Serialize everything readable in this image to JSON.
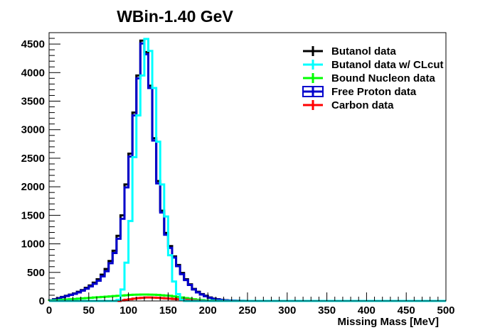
{
  "chart_data": {
    "type": "line",
    "title": "WBin-1.40 GeV",
    "xlabel": "Missing Mass [MeV]",
    "ylabel": "",
    "xlim": [
      0,
      500
    ],
    "ylim": [
      0,
      4700
    ],
    "xticks": [
      0,
      50,
      100,
      150,
      200,
      250,
      300,
      350,
      400,
      450,
      500
    ],
    "yticks": [
      0,
      500,
      1000,
      1500,
      2000,
      2500,
      3000,
      3500,
      4000,
      4500
    ],
    "bin_width": 5,
    "legend_position": "top-right",
    "grid": false,
    "series": [
      {
        "name": "Butanol data",
        "color": "#000000",
        "values": [
          10,
          30,
          50,
          70,
          90,
          110,
          130,
          160,
          190,
          230,
          270,
          320,
          380,
          460,
          560,
          700,
          880,
          1140,
          1500,
          2040,
          2580,
          3300,
          3950,
          4560,
          4360,
          3770,
          2850,
          2100,
          1580,
          1190,
          960,
          780,
          630,
          490,
          380,
          290,
          210,
          160,
          120,
          90,
          60,
          40,
          30,
          20,
          12,
          8,
          5,
          3,
          2,
          1,
          0
        ]
      },
      {
        "name": "Butanol data w/ CLcut",
        "color": "#00ffff",
        "values": [
          0,
          0,
          0,
          0,
          0,
          0,
          0,
          0,
          0,
          0,
          0,
          0,
          0,
          0,
          0,
          0,
          0,
          20,
          200,
          670,
          1400,
          2520,
          3250,
          3950,
          4590,
          4380,
          3730,
          2790,
          2040,
          1480,
          800,
          340,
          120,
          20,
          0,
          0,
          0,
          0,
          0,
          0,
          0,
          0,
          0,
          0,
          0,
          0,
          0,
          0,
          0,
          0,
          0
        ]
      },
      {
        "name": "Bound Nucleon data",
        "color": "#00ff00",
        "values": [
          5,
          10,
          15,
          20,
          25,
          30,
          35,
          40,
          45,
          50,
          55,
          60,
          65,
          70,
          75,
          80,
          85,
          90,
          95,
          100,
          105,
          108,
          110,
          112,
          112,
          110,
          108,
          105,
          100,
          95,
          90,
          80,
          70,
          60,
          50,
          40,
          30,
          22,
          15,
          10,
          6,
          4,
          2,
          1,
          0,
          0,
          0,
          0,
          0,
          0,
          0
        ]
      },
      {
        "name": "Free Proton data",
        "color": "#0000cc",
        "values": [
          10,
          25,
          45,
          65,
          85,
          105,
          125,
          150,
          180,
          215,
          255,
          300,
          355,
          430,
          520,
          660,
          840,
          1090,
          1440,
          1990,
          2530,
          3250,
          3900,
          4510,
          4320,
          3730,
          2810,
          2060,
          1550,
          1160,
          930,
          760,
          610,
          470,
          365,
          280,
          200,
          150,
          112,
          82,
          55,
          36,
          27,
          18,
          10,
          7,
          4,
          2,
          1,
          0,
          0
        ]
      },
      {
        "name": "Carbon data",
        "color": "#ff0000",
        "values": [
          0,
          0,
          0,
          0,
          0,
          0,
          0,
          0,
          0,
          0,
          0,
          0,
          0,
          0,
          0,
          0,
          0,
          0,
          10,
          20,
          30,
          40,
          50,
          55,
          60,
          60,
          58,
          55,
          50,
          45,
          40,
          35,
          30,
          25,
          20,
          15,
          10,
          5,
          3,
          2,
          0,
          0,
          0,
          0,
          0,
          0,
          0,
          0,
          0,
          0,
          0
        ]
      }
    ]
  }
}
